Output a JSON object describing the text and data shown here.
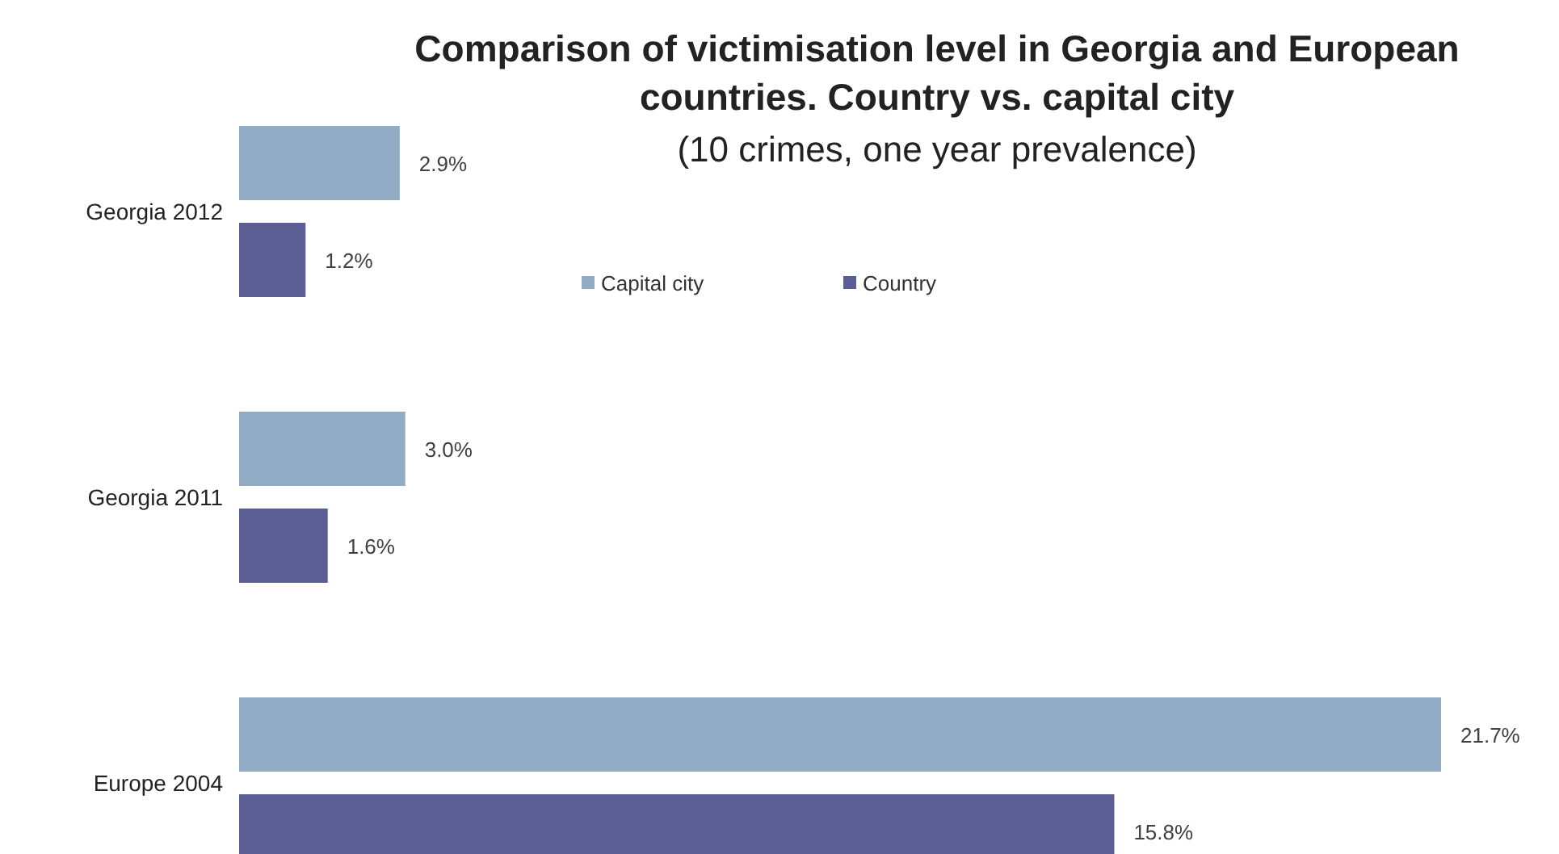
{
  "chart_data": {
    "type": "bar",
    "orientation": "horizontal",
    "title": "Comparison of victimisation level in Georgia and European countries. Country vs. capital city",
    "subtitle": "(10 crimes, one year prevalence)",
    "categories": [
      "Georgia 2012",
      "Georgia 2011",
      "Europe 2004"
    ],
    "series": [
      {
        "name": "Capital city",
        "color": "#93acc6",
        "values": [
          2.9,
          3.0,
          21.7
        ],
        "value_labels": [
          "2.9%",
          "3.0%",
          "21.7%"
        ]
      },
      {
        "name": "Country",
        "color": "#5a5e93",
        "values": [
          1.2,
          1.6,
          15.8
        ],
        "value_labels": [
          "1.2%",
          "1.6%",
          "15.8%"
        ]
      }
    ],
    "legend": "top",
    "tick_labels": "y"
  }
}
